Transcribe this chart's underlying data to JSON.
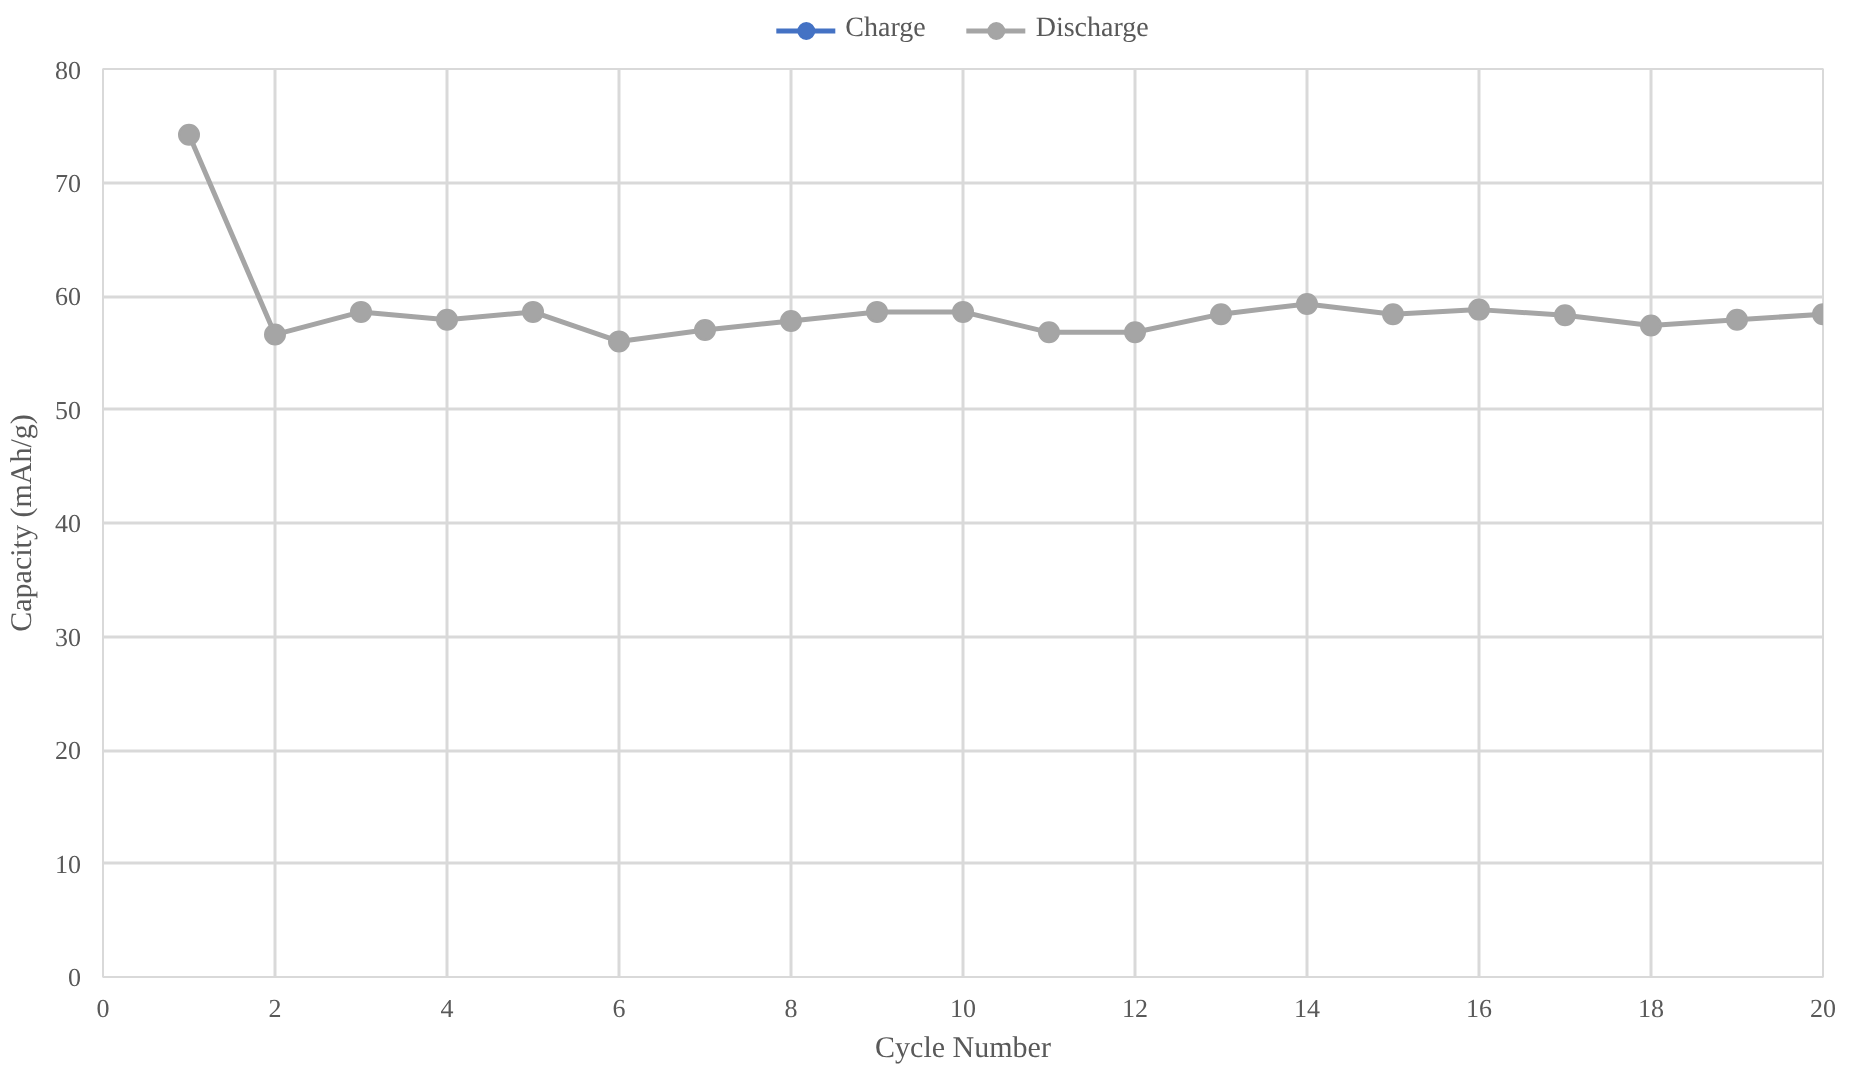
{
  "chart_data": {
    "type": "line",
    "xlabel": "Cycle Number",
    "ylabel": "Capacity (mAh/g)",
    "x": [
      1,
      2,
      3,
      4,
      5,
      6,
      7,
      8,
      9,
      10,
      11,
      12,
      13,
      14,
      15,
      16,
      17,
      18,
      19,
      20
    ],
    "series": [
      {
        "name": "Charge",
        "color": "#4472c4",
        "values": [
          null,
          null,
          null,
          null,
          null,
          null,
          null,
          null,
          null,
          null,
          null,
          null,
          null,
          null,
          null,
          null,
          null,
          null,
          null,
          null
        ]
      },
      {
        "name": "Discharge",
        "color": "#a5a5a5",
        "values": [
          74.2,
          56.6,
          58.6,
          57.9,
          58.6,
          56.0,
          57.0,
          57.8,
          58.6,
          58.6,
          56.8,
          56.8,
          58.4,
          59.3,
          58.4,
          58.8,
          58.3,
          57.4,
          57.9,
          58.4
        ]
      }
    ],
    "xlim": [
      0,
      20
    ],
    "xticks": [
      0,
      2,
      4,
      6,
      8,
      10,
      12,
      14,
      16,
      18,
      20
    ],
    "ylim": [
      0,
      80
    ],
    "yticks": [
      0,
      10,
      20,
      30,
      40,
      50,
      60,
      70,
      80
    ],
    "grid": true,
    "legend": "top",
    "marker": "circle",
    "line_style": "solid"
  }
}
